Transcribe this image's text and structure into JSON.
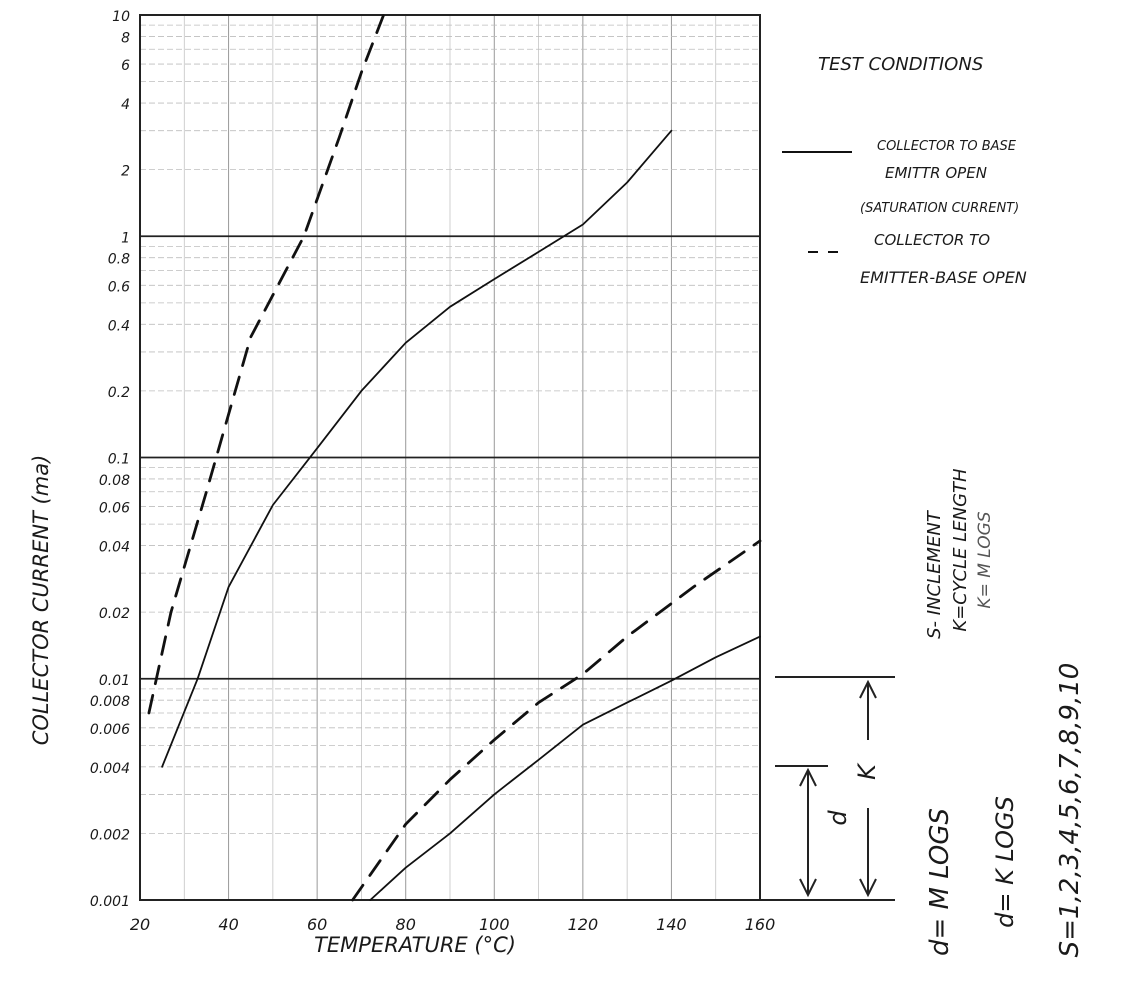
{
  "chart_data": {
    "type": "line",
    "title": "",
    "xlabel": "TEMPERATURE (°C)",
    "ylabel": "COLLECTOR CURRENT (ma)",
    "x_ticks": [
      "20",
      "40",
      "60",
      "80",
      "100",
      "120",
      "140",
      "160"
    ],
    "y_scale": "log",
    "y_ticks": [
      {
        "value": 10,
        "label": "10"
      },
      {
        "value": 8,
        "label": "8"
      },
      {
        "value": 6,
        "label": "6"
      },
      {
        "value": 4,
        "label": "4"
      },
      {
        "value": 2,
        "label": "2"
      },
      {
        "value": 1,
        "label": "1"
      },
      {
        "value": 0.8,
        "label": "0.8"
      },
      {
        "value": 0.6,
        "label": "0.6"
      },
      {
        "value": 0.4,
        "label": "0.4"
      },
      {
        "value": 0.2,
        "label": "0.2"
      },
      {
        "value": 0.1,
        "label": "0.1"
      },
      {
        "value": 0.08,
        "label": "0.08"
      },
      {
        "value": 0.06,
        "label": "0.06"
      },
      {
        "value": 0.04,
        "label": "0.04"
      },
      {
        "value": 0.02,
        "label": "0.02"
      },
      {
        "value": 0.01,
        "label": "0.01"
      },
      {
        "value": 0.008,
        "label": "0.008"
      },
      {
        "value": 0.006,
        "label": "0.006"
      },
      {
        "value": 0.004,
        "label": "0.004"
      },
      {
        "value": 0.002,
        "label": "0.002"
      },
      {
        "value": 0.001,
        "label": "0.001"
      }
    ],
    "xlim": [
      20,
      160
    ],
    "ylim": [
      0.001,
      10
    ],
    "grid": true,
    "series": [
      {
        "style": "solid",
        "points": [
          [
            25,
            0.004
          ],
          [
            33,
            0.01
          ],
          [
            40,
            0.026
          ],
          [
            50,
            0.061
          ],
          [
            60,
            0.11
          ],
          [
            70,
            0.2
          ],
          [
            80,
            0.33
          ],
          [
            90,
            0.48
          ],
          [
            100,
            0.64
          ],
          [
            110,
            0.85
          ],
          [
            120,
            1.13
          ],
          [
            130,
            1.75
          ],
          [
            140,
            3.0
          ]
        ]
      },
      {
        "style": "dashed",
        "points": [
          [
            22,
            0.007
          ],
          [
            27,
            0.02
          ],
          [
            35,
            0.07
          ],
          [
            45,
            0.35
          ],
          [
            57,
            1.0
          ],
          [
            65,
            2.8
          ],
          [
            70,
            5.5
          ],
          [
            75,
            10
          ]
        ]
      },
      {
        "style": "solid",
        "points": [
          [
            72,
            0.001
          ],
          [
            80,
            0.0014
          ],
          [
            90,
            0.002
          ],
          [
            100,
            0.003
          ],
          [
            110,
            0.0043
          ],
          [
            120,
            0.0062
          ],
          [
            130,
            0.0078
          ],
          [
            140,
            0.0098
          ],
          [
            150,
            0.0125
          ],
          [
            160,
            0.0155
          ]
        ]
      },
      {
        "style": "dashed",
        "points": [
          [
            68,
            0.001
          ],
          [
            80,
            0.0022
          ],
          [
            90,
            0.0035
          ],
          [
            100,
            0.0053
          ],
          [
            110,
            0.0078
          ],
          [
            120,
            0.0105
          ],
          [
            130,
            0.0155
          ],
          [
            145,
            0.026
          ],
          [
            160,
            0.042
          ]
        ]
      }
    ]
  },
  "legend": {
    "heading": "TEST CONDITIONS",
    "solid_lines": [
      "COLLECTOR TO BASE",
      "EMITTR OPEN",
      "(SATURATION CURRENT)"
    ],
    "dashed_lines": [
      "COLLECTOR TO",
      "EMITTER-BASE OPEN"
    ]
  },
  "annotations": {
    "k_label": "K",
    "d_label": "d",
    "formulas": [
      "d= M LOGS",
      "d= K LOGS",
      "S=1,2,3,4,5,6,7,8,9,10"
    ],
    "notes": [
      "S- INCLEMENT",
      "K=CYCLE LENGTH",
      "K= M LOGS"
    ]
  }
}
